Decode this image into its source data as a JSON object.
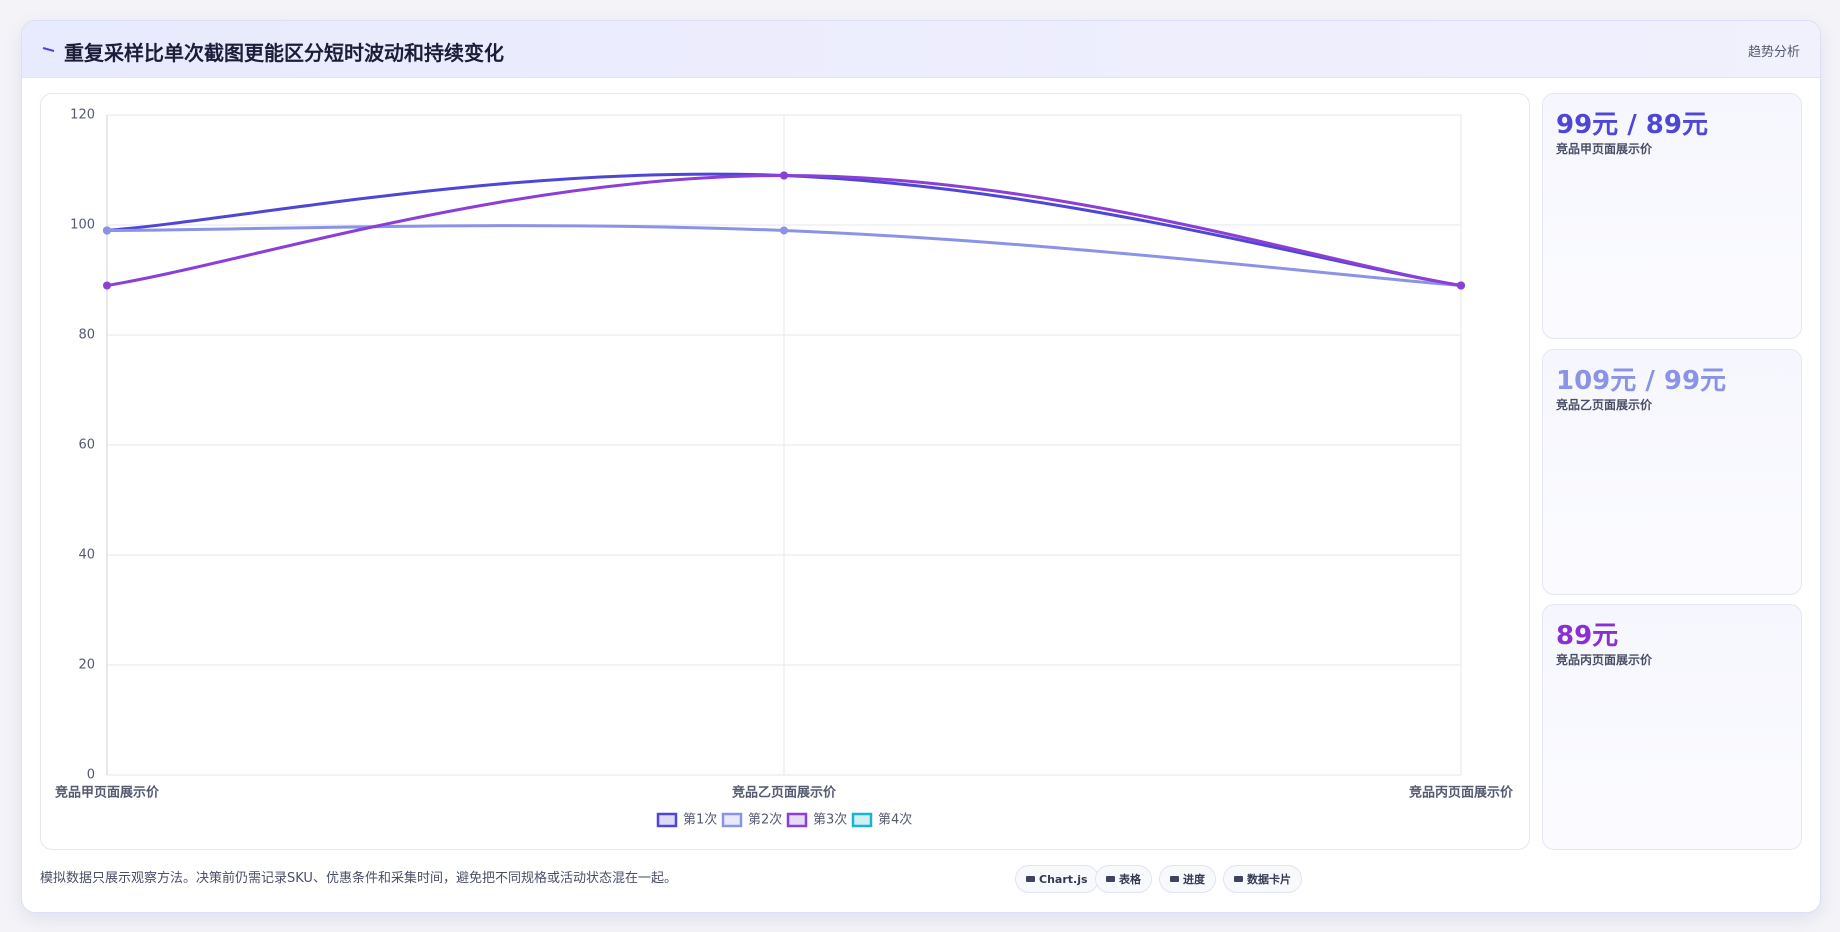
{
  "header": {
    "title": "重复采样比单次截图更能区分短时波动和持续变化",
    "tag": "趋势分析"
  },
  "chart_data": {
    "type": "line",
    "categories": [
      "竞品甲页面展示价",
      "竞品乙页面展示价",
      "竞品丙页面展示价"
    ],
    "series": [
      {
        "name": "第1次",
        "color": "#4f46d6",
        "values": [
          99,
          109,
          89
        ]
      },
      {
        "name": "第2次",
        "color": "#8b93e6",
        "values": [
          99,
          99,
          89
        ]
      },
      {
        "name": "第3次",
        "color": "#8a3fd8",
        "values": [
          89,
          109,
          89
        ]
      },
      {
        "name": "第4次",
        "color": "#17b5cf",
        "values": [
          null,
          null,
          null
        ]
      }
    ],
    "ylim": [
      0,
      120
    ],
    "yticks": [
      0,
      20,
      40,
      60,
      80,
      100,
      120
    ],
    "grid": true
  },
  "cards": [
    {
      "value": "99元 / 89元",
      "label": "竞品甲页面展示价",
      "color": "#4f46d6"
    },
    {
      "value": "109元 / 99元",
      "label": "竞品乙页面展示价",
      "color": "#8b93e6"
    },
    {
      "value": "89元",
      "label": "竞品丙页面展示价",
      "color": "#8a2fd0"
    }
  ],
  "footer": {
    "note": "模拟数据只展示观察方法。决策前仍需记录SKU、优惠条件和采集时间，避免把不同规格或活动状态混在一起。",
    "buttons": [
      "Chart.js",
      "表格",
      "进度",
      "数据卡片"
    ]
  }
}
